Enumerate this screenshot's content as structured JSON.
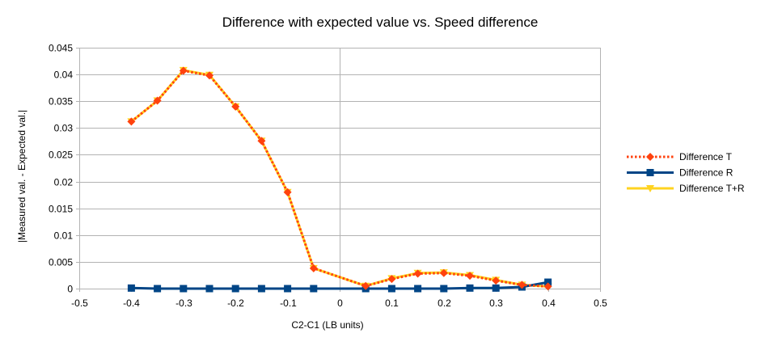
{
  "chart_data": {
    "type": "line",
    "title": "Difference with expected value vs. Speed difference",
    "xlabel": "C2-C1 (LB units)",
    "ylabel": "|Measured val. - Expected val.|",
    "xlim": [
      -0.5,
      0.5
    ],
    "ylim": [
      0,
      0.045
    ],
    "xticks": [
      "-0.5",
      "-0.4",
      "-0.3",
      "-0.2",
      "-0.1",
      "0",
      "0.1",
      "0.2",
      "0.3",
      "0.4",
      "0.5"
    ],
    "yticks": [
      "0",
      "0.005",
      "0.01",
      "0.015",
      "0.02",
      "0.025",
      "0.03",
      "0.035",
      "0.04",
      "0.045"
    ],
    "xtick_values": [
      -0.5,
      -0.4,
      -0.3,
      -0.2,
      -0.1,
      0,
      0.1,
      0.2,
      0.3,
      0.4,
      0.5
    ],
    "ytick_values": [
      0,
      0.005,
      0.01,
      0.015,
      0.02,
      0.025,
      0.03,
      0.035,
      0.04,
      0.045
    ],
    "grid": true,
    "legend_position": "right",
    "series": [
      {
        "name": "Difference T",
        "color": "#ff420e",
        "line_style": "dotted",
        "marker": "diamond",
        "x": [
          -0.4,
          -0.35,
          -0.3,
          -0.25,
          -0.2,
          -0.15,
          -0.1,
          -0.05,
          0.05,
          0.1,
          0.15,
          0.2,
          0.25,
          0.3,
          0.35,
          0.4
        ],
        "y": [
          0.0312,
          0.0351,
          0.0407,
          0.0398,
          0.034,
          0.0276,
          0.018,
          0.0038,
          0.0005,
          0.0018,
          0.0028,
          0.0029,
          0.0024,
          0.0015,
          0.0007,
          0.0004
        ]
      },
      {
        "name": "Difference R",
        "color": "#004586",
        "line_style": "solid",
        "marker": "square",
        "x": [
          -0.4,
          -0.35,
          -0.3,
          -0.25,
          -0.2,
          -0.15,
          -0.1,
          -0.05,
          0.05,
          0.1,
          0.15,
          0.2,
          0.25,
          0.3,
          0.35,
          0.4
        ],
        "y": [
          0.0001,
          0.0,
          0.0,
          0.0,
          0.0,
          0.0,
          0.0,
          0.0,
          0.0,
          0.0,
          0.0,
          0.0,
          0.0001,
          0.0001,
          0.0003,
          0.0012
        ]
      },
      {
        "name": "Difference T+R",
        "color": "#ffd320",
        "line_style": "solid",
        "marker": "triangle-down",
        "x": [
          -0.4,
          -0.35,
          -0.3,
          -0.25,
          -0.2,
          -0.15,
          -0.1,
          -0.05,
          0.05,
          0.1,
          0.15,
          0.2,
          0.25,
          0.3,
          0.35,
          0.4
        ],
        "y": [
          0.0312,
          0.0351,
          0.0408,
          0.0399,
          0.034,
          0.0276,
          0.018,
          0.0038,
          0.0005,
          0.0019,
          0.0029,
          0.003,
          0.0025,
          0.0016,
          0.0007,
          0.0004
        ]
      }
    ]
  }
}
